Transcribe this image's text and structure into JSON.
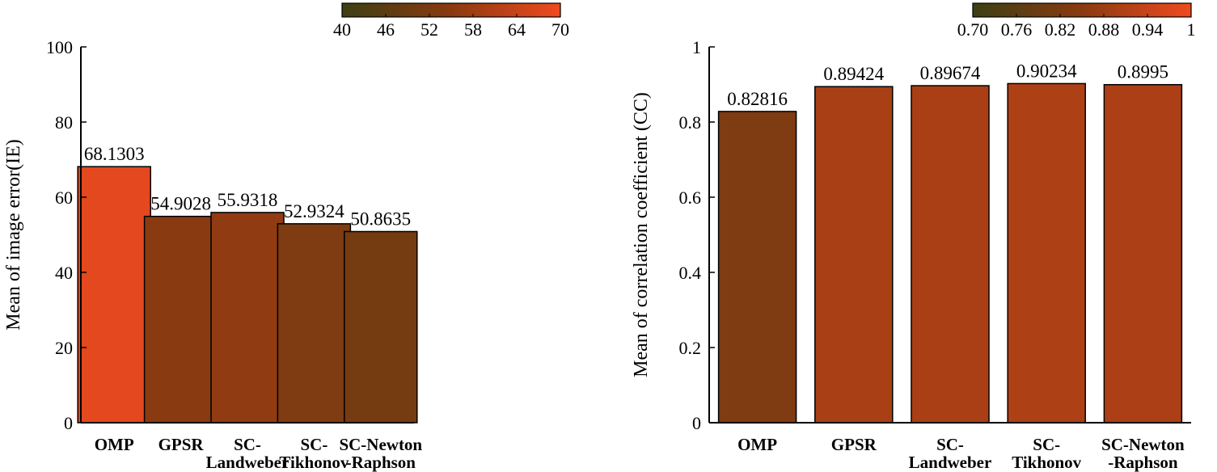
{
  "chart_data": [
    {
      "type": "bar",
      "categories": [
        "OMP",
        "GPSR",
        "SC-\nLandweber",
        "SC-\nTikhonov",
        "SC-Newton\n-Raphson"
      ],
      "values": [
        68.1303,
        54.9028,
        55.9318,
        52.9324,
        50.8635
      ],
      "value_labels": [
        "68.1303",
        "54.9028",
        "55.9318",
        "52.9324",
        "50.8635"
      ],
      "title": "",
      "xlabel": "",
      "ylabel": "Mean of image error(IE)",
      "ylim": [
        0,
        100
      ],
      "yticks": [
        "0",
        "20",
        "40",
        "60",
        "80",
        "100"
      ],
      "colorbar": {
        "range": [
          40,
          70
        ],
        "ticks": [
          "40",
          "46",
          "52",
          "58",
          "64",
          "70"
        ],
        "colors": [
          "#3d3f14",
          "#8a3a10",
          "#f04a20"
        ]
      }
    },
    {
      "type": "bar",
      "categories": [
        "OMP",
        "GPSR",
        "SC-\nLandweber",
        "SC-\nTikhonov",
        "SC-Newton\n-Raphson"
      ],
      "values": [
        0.82816,
        0.89424,
        0.89674,
        0.90234,
        0.8995
      ],
      "value_labels": [
        "0.82816",
        "0.89424",
        "0.89674",
        "0.90234",
        "0.8995"
      ],
      "title": "",
      "xlabel": "",
      "ylabel": "Mean of correlation coefficient (CC)",
      "ylim": [
        0,
        1
      ],
      "yticks": [
        "0",
        "0.2",
        "0.4",
        "0.6",
        "0.8",
        "1"
      ],
      "colorbar": {
        "range": [
          0.7,
          1.0
        ],
        "ticks": [
          "0.70",
          "0.76",
          "0.82",
          "0.88",
          "0.94",
          "1"
        ],
        "colors": [
          "#3d3f14",
          "#8a3a10",
          "#f04a20"
        ]
      }
    }
  ]
}
